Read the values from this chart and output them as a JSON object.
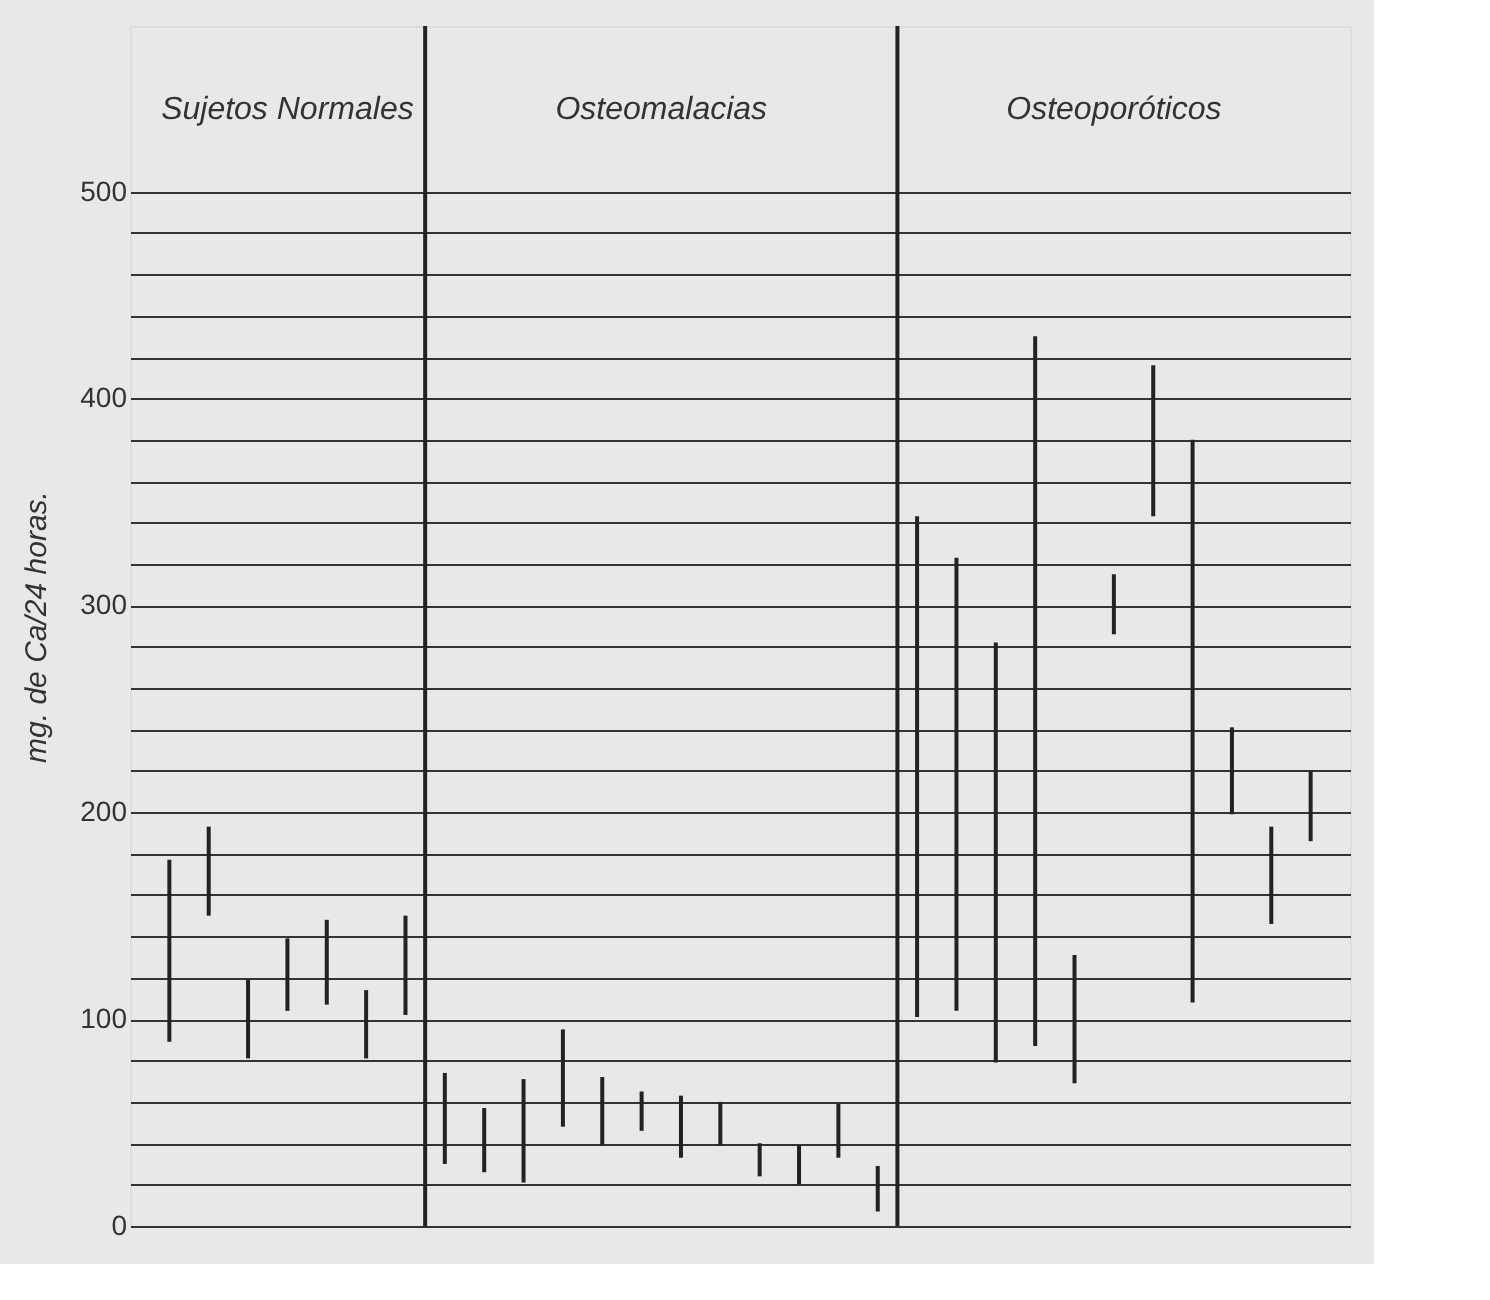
{
  "chart_data": {
    "type": "bar",
    "ylabel": "mg. de Ca/24 horas.",
    "annotations": [
      "Sujetos Normales",
      "Osteomalacias",
      "Osteoporóticos"
    ],
    "categories": [
      null,
      null,
      null,
      null,
      null,
      null,
      null,
      null,
      null,
      null,
      null,
      null,
      null,
      null,
      null,
      null,
      null,
      null,
      null,
      null,
      null,
      null,
      null,
      null,
      null,
      null,
      null,
      null,
      null,
      null
    ],
    "series": [
      {
        "color": "#222222",
        "base": [
          89,
          150,
          81,
          104,
          107,
          81,
          102,
          null,
          null,
          null,
          null,
          null,
          null,
          null,
          null,
          null,
          null,
          null,
          null,
          null,
          null,
          null,
          null,
          null,
          null,
          null,
          null,
          null,
          null,
          null
        ],
        "values": [
          88,
          43,
          38,
          35,
          41,
          33,
          48,
          null,
          null,
          null,
          null,
          null,
          null,
          null,
          null,
          null,
          null,
          null,
          null,
          null,
          null,
          null,
          null,
          null,
          null,
          null,
          null,
          null,
          null,
          null
        ]
      },
      {
        "color": "#222222",
        "base": [
          null,
          null,
          null,
          null,
          null,
          null,
          null,
          30,
          26,
          21,
          48,
          39,
          46,
          33,
          39,
          24,
          20,
          33,
          7,
          null,
          null,
          null,
          null,
          null,
          null,
          null,
          null,
          null,
          null,
          null
        ],
        "values": [
          null,
          null,
          null,
          null,
          null,
          null,
          null,
          44,
          31,
          50,
          47,
          33,
          19,
          30,
          21,
          16,
          19,
          26,
          22,
          null,
          null,
          null,
          null,
          null,
          null,
          null,
          null,
          null,
          null,
          null
        ]
      },
      {
        "color": "#222222",
        "base": [
          null,
          null,
          null,
          null,
          null,
          null,
          null,
          null,
          null,
          null,
          null,
          null,
          null,
          null,
          null,
          null,
          null,
          null,
          null,
          101,
          104,
          79,
          87,
          69,
          286,
          343,
          108,
          199,
          146,
          186
        ],
        "values": [
          null,
          null,
          null,
          null,
          null,
          null,
          null,
          null,
          null,
          null,
          null,
          null,
          null,
          null,
          null,
          null,
          null,
          null,
          null,
          242,
          219,
          203,
          343,
          62,
          29,
          73,
          272,
          42,
          47,
          34
        ]
      }
    ],
    "ylim": [
      0,
      580
    ],
    "yticks": [
      0,
      {
        "value": 20,
        "label": null
      },
      {
        "value": 40,
        "label": null
      },
      {
        "value": 60,
        "label": null
      },
      {
        "value": 80,
        "label": null
      },
      100,
      {
        "value": 120,
        "label": null
      },
      {
        "value": 140,
        "label": null
      },
      {
        "value": 160,
        "label": null
      },
      {
        "value": 180,
        "label": null
      },
      200,
      {
        "value": 220,
        "label": null
      },
      {
        "value": 240,
        "label": null
      },
      {
        "value": 260,
        "label": null
      },
      {
        "value": 280,
        "label": null
      },
      300,
      {
        "value": 320,
        "label": null
      },
      {
        "value": 340,
        "label": null
      },
      {
        "value": 360,
        "label": null
      },
      {
        "value": 380,
        "label": null
      },
      400,
      {
        "value": 420,
        "label": null
      },
      {
        "value": 440,
        "label": null
      },
      {
        "value": 460,
        "label": null
      },
      {
        "value": 480,
        "label": null
      },
      500
    ],
    "grid": "y"
  }
}
